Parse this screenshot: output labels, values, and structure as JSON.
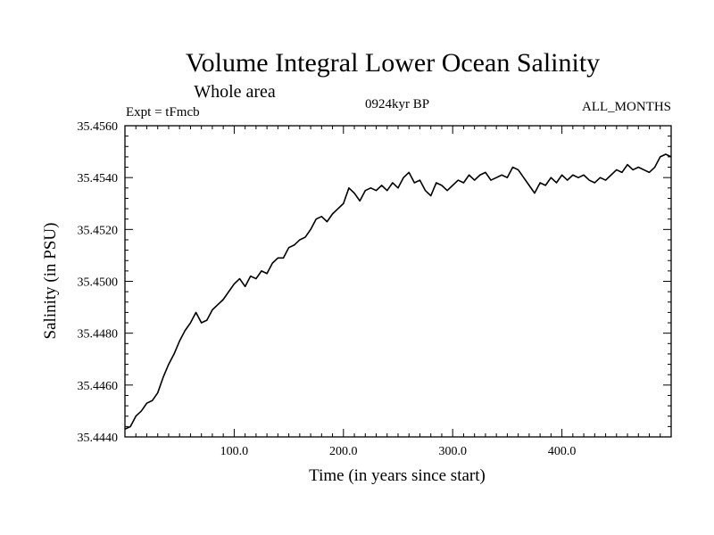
{
  "chart_data": {
    "type": "line",
    "title": "Volume Integral Lower Ocean Salinity",
    "subtitle": "Whole area",
    "experiment_label": "Expt = tFmcb",
    "period_label": "0924kyr BP",
    "months_label": "ALL_MONTHS",
    "xlabel": "Time (in years since start)",
    "ylabel": "Salinity (in PSU)",
    "xlim": [
      0,
      500
    ],
    "ylim": [
      35.444,
      35.456
    ],
    "x_major_ticks": [
      100,
      200,
      300,
      400
    ],
    "x_tick_labels": [
      "100.0",
      "200.0",
      "300.0",
      "400.0"
    ],
    "y_major_ticks": [
      35.444,
      35.446,
      35.448,
      35.45,
      35.452,
      35.454,
      35.456
    ],
    "y_tick_labels": [
      "35.4440",
      "35.4460",
      "35.4480",
      "35.4500",
      "35.4520",
      "35.4540",
      "35.4560"
    ],
    "grid": false,
    "line_color": "#000000",
    "series": [
      {
        "name": "Salinity",
        "points": [
          [
            0,
            35.4443
          ],
          [
            5,
            35.4444
          ],
          [
            10,
            35.4448
          ],
          [
            15,
            35.445
          ],
          [
            20,
            35.4453
          ],
          [
            25,
            35.4454
          ],
          [
            30,
            35.4457
          ],
          [
            35,
            35.4463
          ],
          [
            40,
            35.4468
          ],
          [
            45,
            35.4472
          ],
          [
            50,
            35.4477
          ],
          [
            55,
            35.4481
          ],
          [
            60,
            35.4484
          ],
          [
            65,
            35.4488
          ],
          [
            70,
            35.4484
          ],
          [
            75,
            35.4485
          ],
          [
            80,
            35.4489
          ],
          [
            85,
            35.4491
          ],
          [
            90,
            35.4493
          ],
          [
            95,
            35.4496
          ],
          [
            100,
            35.4499
          ],
          [
            105,
            35.4501
          ],
          [
            110,
            35.4498
          ],
          [
            115,
            35.4502
          ],
          [
            120,
            35.4501
          ],
          [
            125,
            35.4504
          ],
          [
            130,
            35.4503
          ],
          [
            135,
            35.4507
          ],
          [
            140,
            35.4509
          ],
          [
            145,
            35.4509
          ],
          [
            150,
            35.4513
          ],
          [
            155,
            35.4514
          ],
          [
            160,
            35.4516
          ],
          [
            165,
            35.4517
          ],
          [
            170,
            35.452
          ],
          [
            175,
            35.4524
          ],
          [
            180,
            35.4525
          ],
          [
            185,
            35.4523
          ],
          [
            190,
            35.4526
          ],
          [
            195,
            35.4528
          ],
          [
            200,
            35.453
          ],
          [
            205,
            35.4536
          ],
          [
            210,
            35.4534
          ],
          [
            215,
            35.4531
          ],
          [
            220,
            35.4535
          ],
          [
            225,
            35.4536
          ],
          [
            230,
            35.4535
          ],
          [
            235,
            35.4537
          ],
          [
            240,
            35.4535
          ],
          [
            245,
            35.4538
          ],
          [
            250,
            35.4536
          ],
          [
            255,
            35.454
          ],
          [
            260,
            35.4542
          ],
          [
            265,
            35.4538
          ],
          [
            270,
            35.4539
          ],
          [
            275,
            35.4535
          ],
          [
            280,
            35.4533
          ],
          [
            285,
            35.4538
          ],
          [
            290,
            35.4537
          ],
          [
            295,
            35.4535
          ],
          [
            300,
            35.4537
          ],
          [
            305,
            35.4539
          ],
          [
            310,
            35.4538
          ],
          [
            315,
            35.4541
          ],
          [
            320,
            35.4539
          ],
          [
            325,
            35.4541
          ],
          [
            330,
            35.4542
          ],
          [
            335,
            35.4539
          ],
          [
            340,
            35.454
          ],
          [
            345,
            35.4541
          ],
          [
            350,
            35.454
          ],
          [
            355,
            35.4544
          ],
          [
            360,
            35.4543
          ],
          [
            365,
            35.454
          ],
          [
            370,
            35.4537
          ],
          [
            375,
            35.4534
          ],
          [
            380,
            35.4538
          ],
          [
            385,
            35.4537
          ],
          [
            390,
            35.454
          ],
          [
            395,
            35.4538
          ],
          [
            400,
            35.4541
          ],
          [
            405,
            35.4539
          ],
          [
            410,
            35.4541
          ],
          [
            415,
            35.454
          ],
          [
            420,
            35.4541
          ],
          [
            425,
            35.4539
          ],
          [
            430,
            35.4538
          ],
          [
            435,
            35.454
          ],
          [
            440,
            35.4539
          ],
          [
            445,
            35.4541
          ],
          [
            450,
            35.4543
          ],
          [
            455,
            35.4542
          ],
          [
            460,
            35.4545
          ],
          [
            465,
            35.4543
          ],
          [
            470,
            35.4544
          ],
          [
            475,
            35.4543
          ],
          [
            480,
            35.4542
          ],
          [
            485,
            35.4544
          ],
          [
            490,
            35.4548
          ],
          [
            495,
            35.4549
          ],
          [
            500,
            35.4548
          ]
        ]
      }
    ]
  }
}
